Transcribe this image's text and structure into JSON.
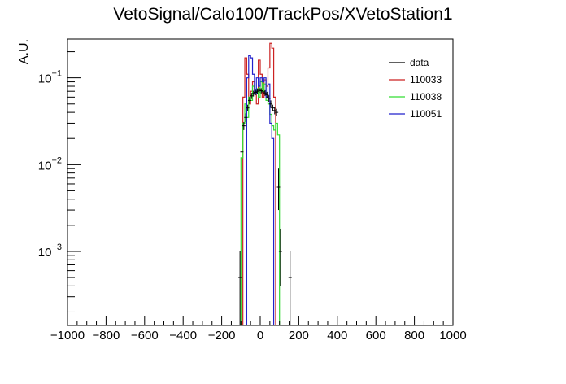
{
  "chart_data": {
    "type": "histogram",
    "title": "VetoSignal/Calo100/TrackPos/XVetoStation1",
    "xlabel": "",
    "ylabel": "A.U.",
    "xlim": [
      -1000,
      1000
    ],
    "ylim": [
      0.00014,
      0.28
    ],
    "yscale": "log",
    "grid": false,
    "legend_position": "top-right",
    "x_ticks": [
      -1000,
      -800,
      -600,
      -400,
      -200,
      0,
      200,
      400,
      600,
      800,
      1000
    ],
    "y_ticks": [
      {
        "base": "10",
        "exp": "−1",
        "value": 0.1
      },
      {
        "base": "10",
        "exp": "−2",
        "value": 0.01
      },
      {
        "base": "10",
        "exp": "−3",
        "value": 0.001
      }
    ],
    "series": [
      {
        "name": "data",
        "color": "#000000",
        "style": "points",
        "points": [
          {
            "x": -105,
            "y": 0.0005,
            "lo": 0.00014,
            "hi": 0.001
          },
          {
            "x": -95,
            "y": 0.014,
            "lo": 0.011,
            "hi": 0.017
          },
          {
            "x": -85,
            "y": 0.028,
            "lo": 0.025,
            "hi": 0.031
          },
          {
            "x": -75,
            "y": 0.035,
            "lo": 0.031,
            "hi": 0.039
          },
          {
            "x": -65,
            "y": 0.045,
            "lo": 0.041,
            "hi": 0.049
          },
          {
            "x": -55,
            "y": 0.055,
            "lo": 0.05,
            "hi": 0.06
          },
          {
            "x": -45,
            "y": 0.062,
            "lo": 0.057,
            "hi": 0.067
          },
          {
            "x": -35,
            "y": 0.066,
            "lo": 0.061,
            "hi": 0.071
          },
          {
            "x": -25,
            "y": 0.068,
            "lo": 0.063,
            "hi": 0.073
          },
          {
            "x": -15,
            "y": 0.07,
            "lo": 0.065,
            "hi": 0.075
          },
          {
            "x": -5,
            "y": 0.072,
            "lo": 0.067,
            "hi": 0.077
          },
          {
            "x": 5,
            "y": 0.071,
            "lo": 0.066,
            "hi": 0.076
          },
          {
            "x": 15,
            "y": 0.069,
            "lo": 0.064,
            "hi": 0.074
          },
          {
            "x": 25,
            "y": 0.067,
            "lo": 0.062,
            "hi": 0.072
          },
          {
            "x": 35,
            "y": 0.064,
            "lo": 0.059,
            "hi": 0.069
          },
          {
            "x": 45,
            "y": 0.058,
            "lo": 0.053,
            "hi": 0.063
          },
          {
            "x": 55,
            "y": 0.05,
            "lo": 0.045,
            "hi": 0.055
          },
          {
            "x": 65,
            "y": 0.045,
            "lo": 0.041,
            "hi": 0.049
          },
          {
            "x": 75,
            "y": 0.042,
            "lo": 0.038,
            "hi": 0.046
          },
          {
            "x": 85,
            "y": 0.04,
            "lo": 0.036,
            "hi": 0.044
          },
          {
            "x": 95,
            "y": 0.0055,
            "lo": 0.003,
            "hi": 0.009
          },
          {
            "x": 105,
            "y": 0.001,
            "lo": 0.0004,
            "hi": 0.0018
          },
          {
            "x": 155,
            "y": 0.0005,
            "lo": 0.00014,
            "hi": 0.001
          }
        ]
      },
      {
        "name": "110033",
        "color": "#cc2222",
        "style": "hist",
        "bins": [
          {
            "x0": -90,
            "x1": -80,
            "y": 0.06
          },
          {
            "x0": -80,
            "x1": -70,
            "y": 0.17
          },
          {
            "x0": -70,
            "x1": -60,
            "y": 0.11
          },
          {
            "x0": -60,
            "x1": -50,
            "y": 0.05
          },
          {
            "x0": -50,
            "x1": -40,
            "y": 0.07
          },
          {
            "x0": -40,
            "x1": -30,
            "y": 0.09
          },
          {
            "x0": -30,
            "x1": -20,
            "y": 0.065
          },
          {
            "x0": -20,
            "x1": -10,
            "y": 0.05
          },
          {
            "x0": -10,
            "x1": 0,
            "y": 0.16
          },
          {
            "x0": 0,
            "x1": 10,
            "y": 0.11
          },
          {
            "x0": 10,
            "x1": 20,
            "y": 0.06
          },
          {
            "x0": 20,
            "x1": 30,
            "y": 0.095
          },
          {
            "x0": 30,
            "x1": 40,
            "y": 0.08
          },
          {
            "x0": 40,
            "x1": 50,
            "y": 0.13
          },
          {
            "x0": 50,
            "x1": 60,
            "y": 0.25
          },
          {
            "x0": 60,
            "x1": 70,
            "y": 0.22
          },
          {
            "x0": 70,
            "x1": 80,
            "y": 0.06
          }
        ]
      },
      {
        "name": "110038",
        "color": "#33dd33",
        "style": "hist",
        "bins": [
          {
            "x0": -100,
            "x1": -90,
            "y": 0.012
          },
          {
            "x0": -90,
            "x1": -80,
            "y": 0.03
          },
          {
            "x0": -80,
            "x1": -70,
            "y": 0.05
          },
          {
            "x0": -70,
            "x1": -60,
            "y": 0.035
          },
          {
            "x0": -60,
            "x1": -50,
            "y": 0.06
          },
          {
            "x0": -50,
            "x1": -40,
            "y": 0.055
          },
          {
            "x0": -40,
            "x1": -30,
            "y": 0.08
          },
          {
            "x0": -30,
            "x1": -20,
            "y": 0.065
          },
          {
            "x0": -20,
            "x1": -10,
            "y": 0.075
          },
          {
            "x0": -10,
            "x1": 0,
            "y": 0.06
          },
          {
            "x0": 0,
            "x1": 10,
            "y": 0.09
          },
          {
            "x0": 10,
            "x1": 20,
            "y": 0.07
          },
          {
            "x0": 20,
            "x1": 30,
            "y": 0.085
          },
          {
            "x0": 30,
            "x1": 40,
            "y": 0.055
          },
          {
            "x0": 40,
            "x1": 50,
            "y": 0.05
          },
          {
            "x0": 50,
            "x1": 60,
            "y": 0.038
          },
          {
            "x0": 60,
            "x1": 70,
            "y": 0.028
          },
          {
            "x0": 70,
            "x1": 80,
            "y": 0.025
          },
          {
            "x0": 80,
            "x1": 90,
            "y": 0.03
          },
          {
            "x0": 90,
            "x1": 100,
            "y": 0.022
          }
        ]
      },
      {
        "name": "110051",
        "color": "#2222cc",
        "style": "hist",
        "bins": [
          {
            "x0": -70,
            "x1": -60,
            "y": 0.1
          },
          {
            "x0": -60,
            "x1": -50,
            "y": 0.18
          },
          {
            "x0": -50,
            "x1": -40,
            "y": 0.17
          },
          {
            "x0": -40,
            "x1": -30,
            "y": 0.11
          },
          {
            "x0": -30,
            "x1": -20,
            "y": 0.065
          },
          {
            "x0": -20,
            "x1": -10,
            "y": 0.1
          },
          {
            "x0": -10,
            "x1": 0,
            "y": 0.08
          },
          {
            "x0": 0,
            "x1": 10,
            "y": 0.1
          },
          {
            "x0": 10,
            "x1": 20,
            "y": 0.09
          },
          {
            "x0": 20,
            "x1": 30,
            "y": 0.1
          },
          {
            "x0": 30,
            "x1": 40,
            "y": 0.06
          },
          {
            "x0": 40,
            "x1": 50,
            "y": 0.085
          },
          {
            "x0": 50,
            "x1": 60,
            "y": 0.03
          },
          {
            "x0": 60,
            "x1": 70,
            "y": 0.02
          }
        ]
      }
    ]
  }
}
